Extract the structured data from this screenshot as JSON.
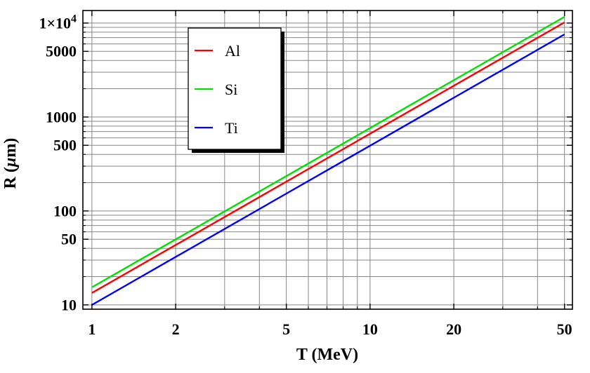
{
  "chart_data": {
    "type": "line",
    "title": "",
    "xlabel": "T (MeV)",
    "ylabel": "R (μm)",
    "xscale": "log",
    "yscale": "log",
    "xlim": [
      0.928,
      53.4
    ],
    "ylim": [
      9.0,
      13600
    ],
    "grid": true,
    "x": [
      1,
      2,
      5,
      10,
      20,
      50
    ],
    "series": [
      {
        "name": "Al",
        "color": "#ff0000",
        "values": [
          13.4,
          43.4,
          205,
          664,
          2150,
          10160
        ]
      },
      {
        "name": "Si",
        "color": "#00e000",
        "values": [
          15.4,
          49.8,
          235,
          762,
          2466,
          11650
        ]
      },
      {
        "name": "Ti",
        "color": "#0000ff",
        "values": [
          10.0,
          32.4,
          153,
          495,
          1604,
          7580
        ]
      }
    ],
    "x_ticks": {
      "major": [
        {
          "v": 1,
          "label": "1"
        },
        {
          "v": 2,
          "label": "2"
        },
        {
          "v": 5,
          "label": "5"
        },
        {
          "v": 10,
          "label": "10"
        },
        {
          "v": 20,
          "label": "20"
        },
        {
          "v": 50,
          "label": "50"
        }
      ],
      "minor": [
        3,
        4,
        6,
        7,
        8,
        9,
        30,
        40
      ]
    },
    "y_ticks": {
      "major": [
        {
          "v": 10,
          "label": "10"
        },
        {
          "v": 50,
          "label": "50"
        },
        {
          "v": 100,
          "label": "100"
        },
        {
          "v": 500,
          "label": "500"
        },
        {
          "v": 1000,
          "label": "1000"
        },
        {
          "v": 5000,
          "label": "5000"
        },
        {
          "v": 10000,
          "label": "1×10^4"
        }
      ],
      "minor": [
        20,
        30,
        40,
        60,
        70,
        80,
        90,
        200,
        300,
        400,
        600,
        700,
        800,
        900,
        2000,
        3000,
        4000,
        6000,
        7000,
        8000,
        9000
      ]
    },
    "legend": {
      "position": "upper-left",
      "entries": [
        "Al",
        "Si",
        "Ti"
      ]
    }
  },
  "styles": {
    "background": "#ffffff",
    "frame_color": "#000000",
    "grid_color": "#878787",
    "text_color": "#000000",
    "legend_fill": "#ffffff",
    "legend_border": "#000000",
    "legend_shadow": "#000000"
  }
}
